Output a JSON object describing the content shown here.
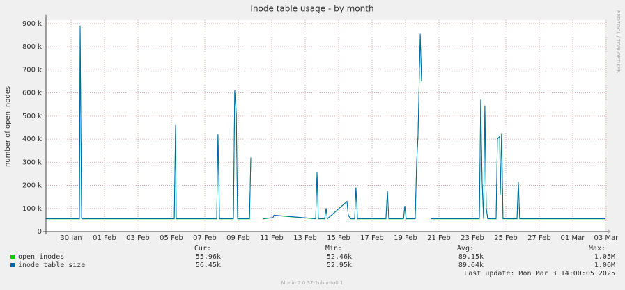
{
  "chart_data": {
    "type": "line",
    "title": "Inode table usage - by month",
    "y_label": "number of open inodes",
    "side_label": "RRDTOOL / TOBI OETIKER",
    "footer": "Munin 2.0.37-1ubuntu0.1",
    "last_update": "Last update: Mon Mar  3 14:00:05 2025",
    "stats_headers": [
      "Cur:",
      "Min:",
      "Avg:",
      "Max:"
    ],
    "x": [
      28.5,
      30.42,
      30.5,
      30.54,
      30.63,
      30.67,
      36.17,
      36.25,
      36.29,
      38.71,
      38.79,
      38.88,
      39.71,
      39.79,
      39.88,
      39.96,
      40.08,
      40.67,
      40.75,
      41.0,
      41.5,
      42.08,
      42.13,
      44.63,
      44.71,
      44.79,
      45.17,
      45.25,
      45.33,
      46.5,
      46.58,
      46.71,
      46.96,
      47.04,
      47.13,
      48.83,
      48.92,
      49.0,
      49.88,
      49.96,
      50.04,
      50.58,
      50.67,
      50.75,
      50.88,
      50.96,
      51.2,
      51.54,
      54.42,
      54.5,
      54.58,
      54.67,
      54.75,
      54.83,
      54.92,
      55.42,
      55.5,
      55.63,
      55.67,
      55.75,
      55.83,
      56.67,
      56.75,
      56.83,
      61.92
    ],
    "series": [
      {
        "name": "open inodes",
        "color": "#00cc00",
        "stats": [
          "55.96k",
          "52.46k",
          "89.15k",
          "1.05M"
        ],
        "values": [
          55000,
          55000,
          55000,
          890000,
          58000,
          55000,
          55000,
          460000,
          55000,
          55000,
          420000,
          55000,
          55000,
          610000,
          515000,
          55000,
          55000,
          55000,
          320000,
          null,
          55000,
          60000,
          70000,
          55000,
          255000,
          55000,
          55000,
          100000,
          55000,
          130000,
          70000,
          55000,
          55000,
          190000,
          55000,
          55000,
          175000,
          55000,
          55000,
          110000,
          55000,
          55000,
          300000,
          410000,
          855000,
          650000,
          null,
          55000,
          55000,
          570000,
          220000,
          55000,
          545000,
          100000,
          55000,
          55000,
          400000,
          410000,
          160000,
          425000,
          55000,
          55000,
          215000,
          55000,
          55000
        ]
      },
      {
        "name": "inode table size",
        "color": "#0066b3",
        "stats": [
          "56.45k",
          "52.95k",
          "89.64k",
          "1.06M"
        ],
        "values": [
          56000,
          56000,
          56000,
          892000,
          59000,
          56000,
          56000,
          461000,
          56000,
          56000,
          421000,
          56000,
          56000,
          611000,
          516000,
          56000,
          56000,
          56000,
          321000,
          null,
          56000,
          61000,
          71000,
          56000,
          256000,
          56000,
          56000,
          101000,
          56000,
          131000,
          71000,
          56000,
          56000,
          191000,
          56000,
          56000,
          176000,
          56000,
          56000,
          111000,
          56000,
          56000,
          301000,
          411000,
          856000,
          651000,
          null,
          56000,
          56000,
          571000,
          221000,
          56000,
          546000,
          101000,
          56000,
          56000,
          401000,
          411000,
          161000,
          426000,
          56000,
          56000,
          216000,
          56000,
          56000
        ]
      }
    ],
    "xlim": [
      28.5,
      61.92
    ],
    "xticks": [
      {
        "value": 30,
        "label": "30 Jan"
      },
      {
        "value": 32,
        "label": "01 Feb"
      },
      {
        "value": 34,
        "label": "03 Feb"
      },
      {
        "value": 36,
        "label": "05 Feb"
      },
      {
        "value": 38,
        "label": "07 Feb"
      },
      {
        "value": 40,
        "label": "09 Feb"
      },
      {
        "value": 42,
        "label": "11 Feb"
      },
      {
        "value": 44,
        "label": "13 Feb"
      },
      {
        "value": 46,
        "label": "15 Feb"
      },
      {
        "value": 48,
        "label": "17 Feb"
      },
      {
        "value": 50,
        "label": "19 Feb"
      },
      {
        "value": 52,
        "label": "21 Feb"
      },
      {
        "value": 54,
        "label": "23 Feb"
      },
      {
        "value": 56,
        "label": "25 Feb"
      },
      {
        "value": 58,
        "label": "27 Feb"
      },
      {
        "value": 60,
        "label": "01 Mar"
      },
      {
        "value": 62,
        "label": "03 Mar"
      }
    ],
    "ylim": [
      0,
      915000
    ],
    "yticks": [
      0,
      {
        "value": 100000,
        "label": "100 k"
      },
      {
        "value": 200000,
        "label": "200 k"
      },
      {
        "value": 300000,
        "label": "300 k"
      },
      {
        "value": 400000,
        "label": "400 k"
      },
      {
        "value": 500000,
        "label": "500 k"
      },
      {
        "value": 600000,
        "label": "600 k"
      },
      {
        "value": 700000,
        "label": "700 k"
      },
      {
        "value": 800000,
        "label": "800 k"
      },
      {
        "value": 900000,
        "label": "900 k"
      }
    ],
    "grid": true
  }
}
